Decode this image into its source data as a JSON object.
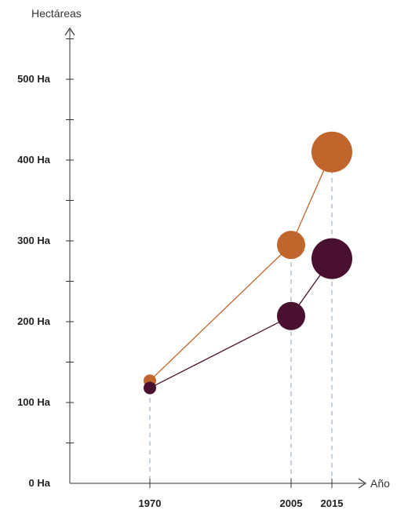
{
  "chart_data": {
    "type": "scatter",
    "title": "",
    "ylabel": "Hectáreas",
    "xlabel": "Año",
    "x": [
      1970,
      2005,
      2015
    ],
    "xticks": [
      "1970",
      "2005",
      "2015"
    ],
    "yticks": [
      {
        "value": 0,
        "label": "0 Ha"
      },
      {
        "value": 100,
        "label": "100 Ha"
      },
      {
        "value": 200,
        "label": "200 Ha"
      },
      {
        "value": 300,
        "label": "300 Ha"
      },
      {
        "value": 400,
        "label": "400 Ha"
      },
      {
        "value": 500,
        "label": "500 Ha"
      }
    ],
    "ylim": [
      0,
      500
    ],
    "grid": false,
    "series": [
      {
        "color": "#c0662c",
        "values": [
          127,
          295,
          410
        ],
        "bubble_scale": [
          1,
          2,
          3
        ]
      },
      {
        "color": "#4a1030",
        "values": [
          118,
          207,
          278
        ],
        "bubble_scale": [
          1,
          2,
          3
        ]
      }
    ]
  }
}
